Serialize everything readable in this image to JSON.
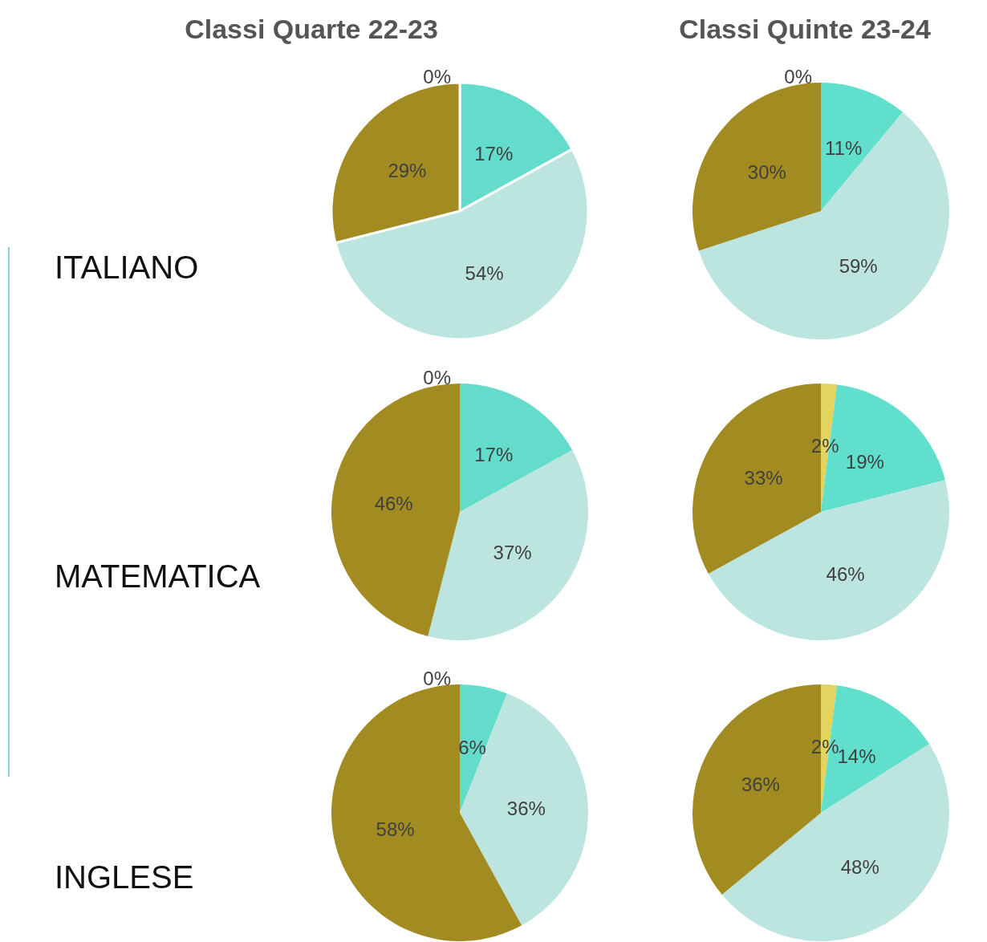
{
  "chart_data": [
    {
      "type": "pie",
      "title": "Classi Quarte 22-23",
      "annotations": [
        "ITALIANO"
      ],
      "categories": [
        null,
        null,
        null,
        null
      ],
      "values": [
        0,
        17,
        54,
        29
      ],
      "colors": [
        "#e3d35f",
        "#64dccb",
        "#bde5df",
        "#a28c22"
      ],
      "value_labels": [
        "0%",
        "17%",
        "54%",
        "29%"
      ]
    },
    {
      "type": "pie",
      "title": "Classi Quinte 23-24",
      "categories": [
        null,
        null,
        null,
        null
      ],
      "values": [
        0,
        11,
        59,
        30
      ],
      "colors": [
        "#e3d35f",
        "#5fdfcc",
        "#bde5df",
        "#a28c22"
      ],
      "value_labels": [
        "0%",
        "11%",
        "59%",
        "30%"
      ]
    },
    {
      "type": "pie",
      "annotations": [
        "MATEMATICA"
      ],
      "categories": [
        null,
        null,
        null,
        null
      ],
      "values": [
        0,
        17,
        37,
        46
      ],
      "colors": [
        "#e3d35f",
        "#64dccb",
        "#bde5df",
        "#a28c22"
      ],
      "value_labels": [
        "0%",
        "17%",
        "37%",
        "46%"
      ]
    },
    {
      "type": "pie",
      "categories": [
        null,
        null,
        null,
        null
      ],
      "values": [
        2,
        19,
        46,
        33
      ],
      "colors": [
        "#e3d35f",
        "#5fdfcc",
        "#bde5df",
        "#a28c22"
      ],
      "value_labels": [
        "2%",
        "19%",
        "46%",
        "33%"
      ]
    },
    {
      "type": "pie",
      "annotations": [
        "INGLESE"
      ],
      "categories": [
        null,
        null,
        null,
        null
      ],
      "values": [
        0,
        6,
        36,
        58
      ],
      "colors": [
        "#e3d35f",
        "#64dccb",
        "#bde5df",
        "#a28c22"
      ],
      "value_labels": [
        "0%",
        "6%",
        "36%",
        "58%"
      ]
    },
    {
      "type": "pie",
      "categories": [
        null,
        null,
        null,
        null
      ],
      "values": [
        2,
        14,
        48,
        36
      ],
      "colors": [
        "#e3d35f",
        "#5fdfcc",
        "#bde5df",
        "#a28c22"
      ],
      "value_labels": [
        "2%",
        "14%",
        "48%",
        "36%"
      ]
    }
  ]
}
